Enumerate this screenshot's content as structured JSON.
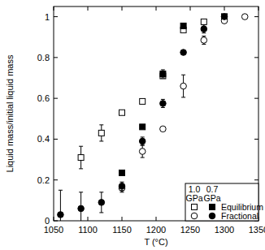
{
  "chart_data": {
    "type": "scatter",
    "x_label": "T (°C)",
    "y_label": "Liquid mass/initial liquid mass",
    "xlim": [
      1050,
      1350
    ],
    "xticks": [
      1050,
      1100,
      1150,
      1200,
      1250,
      1300,
      1350
    ],
    "ylim": [
      0,
      1.05
    ],
    "yticks": [
      0,
      0.2,
      0.4,
      0.6,
      0.8,
      1
    ],
    "legend": "lower right",
    "legend_headers": [
      "1.0 GPa",
      "0.7 GPa"
    ],
    "legend_rows": [
      "Equilibrium",
      "Fractional"
    ],
    "series": [
      {
        "name": "Equilibrium",
        "pressure": "1.0 GPa",
        "color": "#000000",
        "marker": "open-square",
        "x": [
          1090,
          1120,
          1150,
          1180,
          1210,
          1240,
          1270,
          1300
        ],
        "values": [
          0.31,
          0.43,
          0.53,
          0.585,
          0.71,
          0.935,
          0.975,
          1.0
        ],
        "errors": [
          0.055,
          0.04,
          0,
          0,
          0,
          0,
          0,
          0
        ]
      },
      {
        "name": "Equilibrium",
        "pressure": "0.7 GPa",
        "color": "#000000",
        "marker": "filled-square",
        "x": [
          1150,
          1180,
          1210,
          1240,
          1300
        ],
        "values": [
          0.235,
          0.46,
          0.72,
          0.955,
          1.0
        ],
        "errors": [
          0,
          0,
          0.02,
          0,
          0
        ]
      },
      {
        "name": "Fractional",
        "pressure": "1.0 GPa",
        "color": "#000000",
        "marker": "open-circle",
        "x": [
          1150,
          1180,
          1210,
          1240,
          1270,
          1300,
          1330
        ],
        "values": [
          0.16,
          0.34,
          0.45,
          0.66,
          0.885,
          0.98,
          1.0
        ],
        "errors": [
          0.02,
          0.03,
          0,
          0.055,
          0.02,
          0,
          0
        ]
      },
      {
        "name": "Fractional",
        "pressure": "0.7 GPa",
        "color": "#000000",
        "marker": "filled-circle",
        "x": [
          1060,
          1090,
          1120,
          1150,
          1180,
          1210,
          1240,
          1270,
          1300
        ],
        "values": [
          0.03,
          0.06,
          0.09,
          0.17,
          0.39,
          0.575,
          0.825,
          0.94,
          1.0
        ],
        "errors": [
          0.12,
          0.08,
          0.05,
          0.02,
          0.02,
          0.02,
          0,
          0.02,
          0
        ]
      }
    ]
  }
}
